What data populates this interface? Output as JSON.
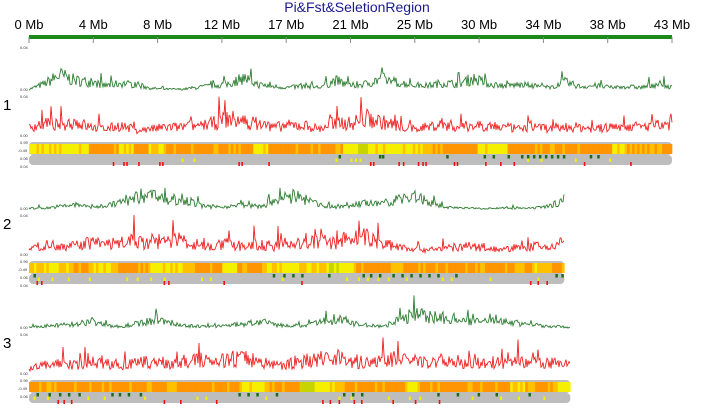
{
  "chart_data": {
    "type": "line",
    "title": "Pi&Fst&SeletionRegion",
    "x_ticks": [
      "0 Mb",
      "4 Mb",
      "8 Mb",
      "12 Mb",
      "17 Mb",
      "21 Mb",
      "25 Mb",
      "30 Mb",
      "34 Mb",
      "38 Mb",
      "43 Mb"
    ],
    "xlim": [
      0,
      43
    ],
    "pi_labels": {
      "top": "0.04",
      "bottom": "0.00"
    },
    "fst_labels": {
      "top": "0.04",
      "bottom": "0.00"
    },
    "heat_labels": {
      "top": "0.99",
      "bottom": "-0.49"
    },
    "sel_label": "0.06",
    "colors": {
      "pi": "#2e7d32",
      "fst": "#ee2222",
      "axis": "#1a8a1a",
      "track": "#bdbdbd",
      "y": "#f5f000",
      "l": "#ffc000",
      "o": "#ff9500",
      "g": "#c8d400",
      "sel_green": "#1b6b1b",
      "sel_yellow": "#f5f000",
      "sel_red": "#ee1111"
    },
    "chromosomes": [
      {
        "name": "1",
        "length": 43,
        "pi": [
          0.002,
          0.008,
          0.018,
          0.012,
          0.01,
          0.006,
          0.009,
          0.007,
          0.003,
          0.002,
          0.002,
          0.004,
          0.006,
          0.008,
          0.015,
          0.007,
          0.005,
          0.004,
          0.006,
          0.004,
          0.012,
          0.006,
          0.008,
          0.014,
          0.01,
          0.007,
          0.006,
          0.009,
          0.008,
          0.014,
          0.008,
          0.006,
          0.007,
          0.006,
          0.004,
          0.01,
          0.005,
          0.006,
          0.004,
          0.005,
          0.004,
          0.008,
          0.004
        ],
        "fst": [
          0.01,
          0.014,
          0.012,
          0.016,
          0.01,
          0.008,
          0.012,
          0.006,
          0.008,
          0.01,
          0.01,
          0.012,
          0.014,
          0.02,
          0.016,
          0.014,
          0.01,
          0.012,
          0.012,
          0.008,
          0.016,
          0.014,
          0.02,
          0.016,
          0.012,
          0.008,
          0.01,
          0.014,
          0.01,
          0.012,
          0.012,
          0.01,
          0.008,
          0.012,
          0.008,
          0.01,
          0.01,
          0.008,
          0.01,
          0.012,
          0.01,
          0.012,
          0.01
        ],
        "heat": [
          "y",
          "y",
          "y",
          "y",
          "o",
          "o",
          "y",
          "o",
          "y",
          "o",
          "o",
          "o",
          "o",
          "o",
          "o",
          "y",
          "o",
          "o",
          "o",
          "o",
          "o",
          "y",
          "g",
          "y",
          "y",
          "y",
          "l",
          "o",
          "o",
          "o",
          "y",
          "y",
          "o",
          "o",
          "o",
          "o",
          "o",
          "o",
          "o",
          "y",
          "o",
          "o",
          "o"
        ],
        "sel_green": [
          20.7,
          23.4,
          23.6,
          27.9,
          30.4,
          31.0,
          32.0,
          32.9,
          33.3,
          33.7,
          34.1,
          34.5,
          34.9,
          35.3,
          35.7,
          37.5,
          38.0
        ],
        "sel_yellow": [
          10.2,
          11.0,
          20.5,
          21.5,
          21.8,
          22.1,
          33.3,
          34.2,
          36.5,
          38.8
        ],
        "sel_red": [
          5.6,
          6.3,
          6.5,
          7.3,
          8.7,
          8.9,
          14.0,
          14.2,
          16.0,
          22.8,
          23.0,
          24.7,
          25.0,
          26.0,
          26.3,
          26.5,
          28.4,
          28.6,
          30.5,
          31.5,
          32.4,
          37.1,
          40.2
        ]
      },
      {
        "name": "2",
        "length": 35.8,
        "pi": [
          0.002,
          0.002,
          0.004,
          0.006,
          0.003,
          0.005,
          0.008,
          0.014,
          0.02,
          0.01,
          0.014,
          0.006,
          0.003,
          0.004,
          0.006,
          0.004,
          0.008,
          0.016,
          0.012,
          0.006,
          0.003,
          0.005,
          0.008,
          0.006,
          0.012,
          0.016,
          0.01,
          0.004,
          0.002,
          0.002,
          0.002,
          0.002,
          0.002,
          0.002,
          0.004,
          0.012
        ],
        "fst": [
          0.008,
          0.01,
          0.012,
          0.01,
          0.014,
          0.012,
          0.014,
          0.016,
          0.012,
          0.018,
          0.016,
          0.012,
          0.01,
          0.012,
          0.01,
          0.012,
          0.01,
          0.014,
          0.012,
          0.016,
          0.014,
          0.018,
          0.02,
          0.014,
          0.01,
          0.008,
          0.006,
          0.008,
          0.008,
          0.01,
          0.008,
          0.006,
          0.008,
          0.01,
          0.008,
          0.016
        ],
        "heat": [
          "l",
          "y",
          "l",
          "o",
          "y",
          "l",
          "o",
          "o",
          "y",
          "y",
          "l",
          "o",
          "o",
          "y",
          "o",
          "o",
          "l",
          "y",
          "y",
          "l",
          "g",
          "y",
          "o",
          "o",
          "o",
          "o",
          "o",
          "o",
          "o",
          "o",
          "o",
          "o",
          "o",
          "o",
          "l",
          "o"
        ],
        "sel_green": [
          0.3,
          16.3,
          17.0,
          17.6,
          18.2,
          20.0,
          22.3,
          22.8,
          23.4,
          24.3,
          24.9,
          25.5,
          26.1,
          26.7,
          27.3,
          28.5,
          35.2,
          35.6
        ],
        "sel_yellow": [
          0.6,
          1.5,
          2.6,
          4.0,
          6.5,
          7.2,
          8.1,
          9.0,
          11.5,
          12.1,
          16.9,
          21.2,
          22.0,
          22.6,
          23.3,
          24.0,
          25.2,
          27.6,
          28.2,
          30.8,
          34.0
        ],
        "sel_red": [
          0.5,
          0.8,
          9.0,
          9.3,
          13.0,
          18.2,
          33.5,
          34.0,
          34.6
        ]
      },
      {
        "name": "3",
        "length": 36.2,
        "pi": [
          0.002,
          0.003,
          0.004,
          0.006,
          0.009,
          0.004,
          0.003,
          0.006,
          0.01,
          0.008,
          0.004,
          0.003,
          0.003,
          0.004,
          0.006,
          0.008,
          0.005,
          0.003,
          0.004,
          0.008,
          0.012,
          0.006,
          0.004,
          0.003,
          0.012,
          0.016,
          0.014,
          0.012,
          0.01,
          0.008,
          0.012,
          0.008,
          0.006,
          0.004,
          0.003,
          0.002
        ],
        "fst": [
          0.006,
          0.01,
          0.012,
          0.01,
          0.014,
          0.012,
          0.01,
          0.012,
          0.014,
          0.012,
          0.014,
          0.016,
          0.014,
          0.016,
          0.018,
          0.014,
          0.01,
          0.012,
          0.016,
          0.018,
          0.02,
          0.014,
          0.012,
          0.018,
          0.016,
          0.014,
          0.012,
          0.016,
          0.014,
          0.012,
          0.01,
          0.012,
          0.014,
          0.012,
          0.012,
          0.01
        ],
        "heat": [
          "o",
          "o",
          "o",
          "o",
          "o",
          "o",
          "o",
          "o",
          "o",
          "o",
          "o",
          "o",
          "o",
          "o",
          "y",
          "y",
          "o",
          "o",
          "g",
          "y",
          "l",
          "o",
          "o",
          "o",
          "o",
          "y",
          "o",
          "o",
          "o",
          "o",
          "o",
          "o",
          "y",
          "o",
          "o",
          "y"
        ],
        "sel_green": [
          0.5,
          1.3,
          2.0,
          2.6,
          3.3,
          5.5,
          6.0,
          6.6,
          7.4,
          14.0,
          14.6,
          15.2,
          16.5,
          21.0,
          21.6,
          22.2,
          27.3,
          28.6,
          30.0,
          31.2,
          33.4
        ],
        "sel_yellow": [
          0.3,
          1.2,
          3.9,
          5.0,
          7.7,
          11.2,
          11.8,
          15.8,
          20.7,
          21.5,
          24.0,
          25.4,
          26.1,
          29.6,
          31.5,
          32.7,
          34.4
        ],
        "sel_red": [
          1.9,
          2.3,
          2.8,
          9.0,
          10.1,
          12.5,
          19.6,
          20.1,
          20.7,
          21.7,
          22.2,
          24.3,
          25.8,
          27.4
        ]
      }
    ]
  }
}
